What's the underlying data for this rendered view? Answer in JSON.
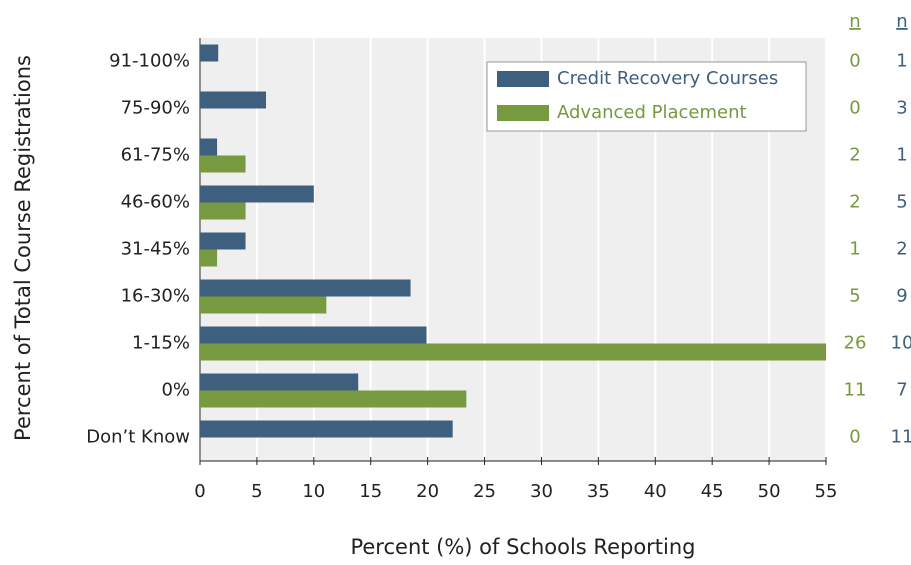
{
  "chart_data": {
    "type": "bar",
    "orientation": "horizontal",
    "x_label": "Percent (%) of Schools Reporting",
    "y_label": "Percent of Total Course Registrations",
    "categories": [
      "91-100%",
      "75-90%",
      "61-75%",
      "46-60%",
      "31-45%",
      "16-30%",
      "1-15%",
      "0%",
      "Don’t Know"
    ],
    "series": [
      {
        "name": "Credit Recovery Courses",
        "color": "#3f5f7f",
        "values": [
          1.6,
          5.8,
          1.5,
          10.0,
          4.0,
          18.5,
          19.9,
          13.9,
          22.2
        ],
        "n_label": "n",
        "n": [
          1,
          3,
          1,
          5,
          2,
          9,
          10,
          7,
          11
        ]
      },
      {
        "name": "Advanced Placement",
        "color": "#77993f",
        "values": [
          0,
          0,
          4.0,
          4.0,
          1.5,
          11.1,
          55,
          23.4,
          0
        ],
        "n_label": "n",
        "n": [
          0,
          0,
          2,
          2,
          1,
          5,
          26,
          11,
          0
        ]
      }
    ],
    "xlim": [
      0,
      55
    ],
    "xticks": [
      0,
      5,
      10,
      15,
      20,
      25,
      30,
      35,
      40,
      45,
      50,
      55
    ],
    "grid": true,
    "legend": "top-right"
  }
}
